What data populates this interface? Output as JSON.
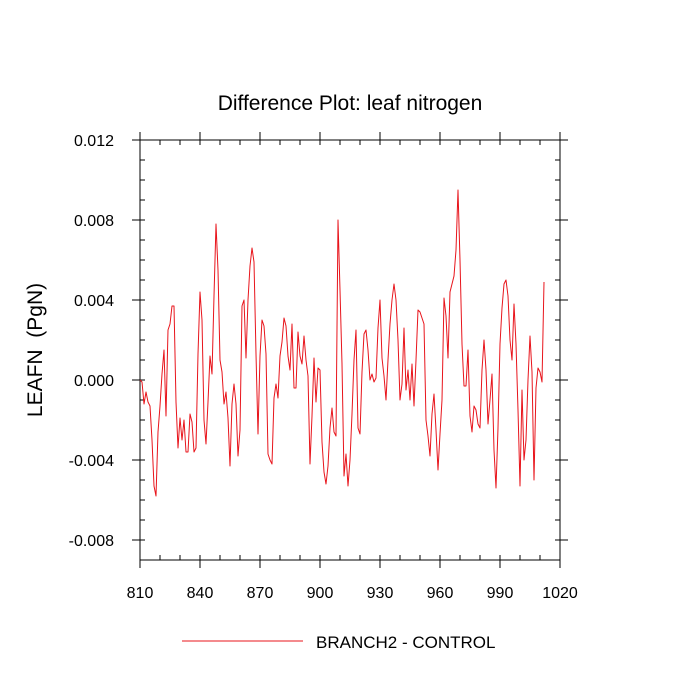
{
  "chart_data": {
    "type": "line",
    "title": "Difference Plot: leaf nitrogen",
    "xlabel": "",
    "ylabel": "LEAFN  (PgN)",
    "xlim": [
      810,
      1020
    ],
    "ylim": [
      -0.009,
      0.012
    ],
    "x_ticks": [
      810,
      840,
      870,
      900,
      930,
      960,
      990,
      1020
    ],
    "x_tick_labels": [
      "810",
      "840",
      "870",
      "900",
      "930",
      "960",
      "990",
      "1020"
    ],
    "y_ticks": [
      -0.008,
      -0.004,
      0.0,
      0.004,
      0.008,
      0.012
    ],
    "y_tick_labels": [
      "-0.008",
      "-0.004",
      "0.000",
      "0.004",
      "0.008",
      "0.012"
    ],
    "grid": false,
    "legend_position": "bottom",
    "colors": {
      "series": "#e8141b",
      "axis": "#000000"
    },
    "series": [
      {
        "name": "BRANCH2 - CONTROL",
        "x_start": 810,
        "x_step": 1,
        "values": [
          0.0,
          -0.0001,
          -0.0012,
          -0.0006,
          -0.0011,
          -0.0013,
          -0.003,
          -0.0053,
          -0.0058,
          -0.0026,
          -0.0013,
          0.0003,
          0.0015,
          -0.0018,
          0.0025,
          0.0028,
          0.0037,
          0.0037,
          -0.0011,
          -0.0034,
          -0.0019,
          -0.003,
          -0.002,
          -0.0036,
          -0.0036,
          -0.0017,
          -0.0021,
          -0.0036,
          -0.0034,
          0.0013,
          0.0044,
          0.003,
          -0.002,
          -0.0032,
          -0.0011,
          0.0012,
          0.0003,
          0.0042,
          0.0078,
          0.0055,
          0.001,
          0.0004,
          -0.0012,
          -0.0006,
          -0.0019,
          -0.0043,
          -0.0012,
          -0.0002,
          -0.0012,
          -0.0038,
          -0.0025,
          0.0037,
          0.004,
          0.0011,
          0.004,
          0.0057,
          0.0066,
          0.0059,
          0.0013,
          -0.0027,
          0.0012,
          0.003,
          0.0027,
          0.0013,
          -0.0037,
          -0.004,
          -0.0042,
          -0.0009,
          -0.0002,
          -0.0009,
          0.0012,
          0.0019,
          0.0031,
          0.0027,
          0.0012,
          0.0005,
          0.0028,
          -0.0004,
          -0.0004,
          0.0024,
          0.0012,
          0.0008,
          0.0022,
          0.001,
          0.0002,
          -0.0042,
          -0.0018,
          0.0011,
          -0.0011,
          0.0006,
          0.0005,
          -0.0031,
          -0.0046,
          -0.0052,
          -0.0043,
          -0.0024,
          -0.0014,
          -0.0026,
          -0.0028,
          0.008,
          0.0045,
          0.0008,
          -0.0048,
          -0.0037,
          -0.0053,
          -0.004,
          -0.0017,
          0.001,
          0.0025,
          -0.0024,
          -0.0027,
          0.0004,
          0.0023,
          0.0025,
          0.0015,
          0.0,
          0.0003,
          -0.0001,
          0.0001,
          0.0026,
          0.004,
          0.0011,
          0.0002,
          -0.001,
          0.001,
          0.0028,
          0.004,
          0.0048,
          0.004,
          0.002,
          -0.001,
          -0.0002,
          0.0026,
          -0.0005,
          0.0005,
          -0.001,
          0.0008,
          -0.0013,
          0.001,
          0.0035,
          0.0034,
          0.0031,
          0.0028,
          -0.002,
          -0.0028,
          -0.0038,
          -0.0017,
          -0.0007,
          -0.0025,
          -0.0045,
          -0.0027,
          -0.001,
          0.0041,
          0.0032,
          0.0011,
          0.0044,
          0.0048,
          0.0052,
          0.0065,
          0.0095,
          0.006,
          0.0018,
          -0.0003,
          -0.0003,
          0.0015,
          -0.0018,
          -0.0026,
          -0.0013,
          -0.0015,
          -0.0022,
          -0.0024,
          0.0005,
          0.002,
          0.0005,
          -0.0022,
          -0.001,
          0.0003,
          -0.0035,
          -0.0054,
          -0.0024,
          0.0018,
          0.0036,
          0.0048,
          0.005,
          0.0042,
          0.002,
          0.001,
          0.0038,
          0.0018,
          -0.0015,
          -0.0053,
          -0.0005,
          -0.004,
          -0.003,
          0.0,
          0.0022,
          0.0004,
          -0.005,
          -0.0004,
          0.0006,
          0.0004,
          -0.0001,
          0.0049
        ]
      }
    ]
  }
}
